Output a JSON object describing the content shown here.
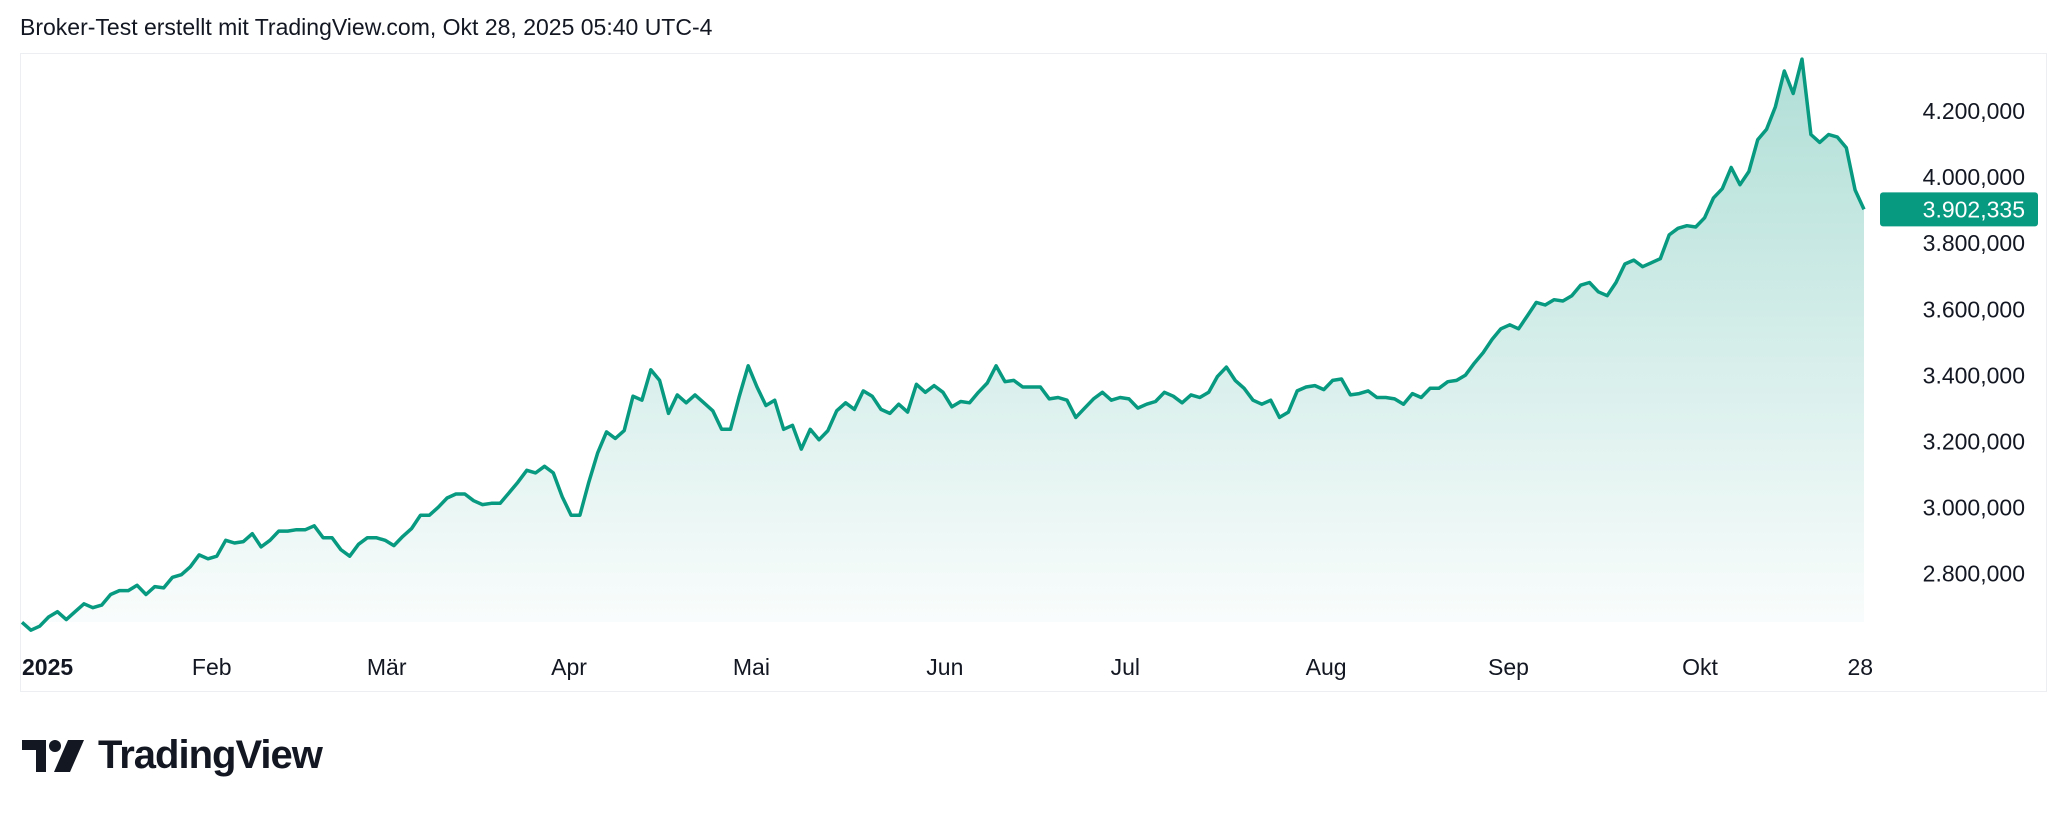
{
  "header": {
    "title": "Broker-Test erstellt mit TradingView.com, Okt 28, 2025 05:40 UTC-4"
  },
  "brand": {
    "name": "TradingView"
  },
  "colors": {
    "line": "#089981",
    "badge": "#089981",
    "text": "#131722"
  },
  "chart_data": {
    "type": "area",
    "title": "",
    "xlabel": "",
    "ylabel": "",
    "value_scale": 1000,
    "x_range": [
      "2025-01-02",
      "2025-10-28"
    ],
    "ylim": [
      2650000,
      4400000
    ],
    "grid": false,
    "x_ticks": [
      {
        "label": "2025",
        "bold": true,
        "pos": 0.0
      },
      {
        "label": "Feb",
        "pos": 0.103
      },
      {
        "label": "Mär",
        "pos": 0.198
      },
      {
        "label": "Apr",
        "pos": 0.297
      },
      {
        "label": "Mai",
        "pos": 0.396
      },
      {
        "label": "Jun",
        "pos": 0.501
      },
      {
        "label": "Jul",
        "pos": 0.599
      },
      {
        "label": "Aug",
        "pos": 0.708
      },
      {
        "label": "Sep",
        "pos": 0.807
      },
      {
        "label": "Okt",
        "pos": 0.911
      },
      {
        "label": "28",
        "pos": 0.998
      }
    ],
    "y_ticks": [
      {
        "label": "4.200,000",
        "value": 4200000
      },
      {
        "label": "4.000,000",
        "value": 4000000
      },
      {
        "label": "3.800,000",
        "value": 3800000
      },
      {
        "label": "3.600,000",
        "value": 3600000
      },
      {
        "label": "3.400,000",
        "value": 3400000
      },
      {
        "label": "3.200,000",
        "value": 3200000
      },
      {
        "label": "3.000,000",
        "value": 3000000
      },
      {
        "label": "2.800,000",
        "value": 2800000
      }
    ],
    "last_value": {
      "label": "3.902,335",
      "value": 3902335
    },
    "values": [
      2653,
      2629,
      2641,
      2669,
      2685,
      2661,
      2685,
      2709,
      2697,
      2705,
      2737,
      2749,
      2749,
      2765,
      2737,
      2761,
      2757,
      2789,
      2797,
      2821,
      2857,
      2845,
      2853,
      2901,
      2893,
      2897,
      2921,
      2881,
      2901,
      2929,
      2929,
      2933,
      2933,
      2945,
      2909,
      2909,
      2873,
      2853,
      2889,
      2909,
      2909,
      2901,
      2885,
      2913,
      2937,
      2977,
      2977,
      3001,
      3029,
      3041,
      3041,
      3021,
      3009,
      3013,
      3013,
      3045,
      3077,
      3113,
      3105,
      3125,
      3105,
      3033,
      2977,
      2977,
      3077,
      3165,
      3229,
      3209,
      3233,
      3337,
      3325,
      3417,
      3385,
      3285,
      3341,
      3317,
      3341,
      3317,
      3293,
      3237,
      3237,
      3337,
      3429,
      3365,
      3309,
      3325,
      3237,
      3249,
      3177,
      3237,
      3205,
      3233,
      3293,
      3317,
      3297,
      3353,
      3337,
      3297,
      3285,
      3313,
      3289,
      3373,
      3349,
      3369,
      3349,
      3305,
      3321,
      3317,
      3349,
      3377,
      3429,
      3381,
      3385,
      3365,
      3365,
      3365,
      3329,
      3333,
      3325,
      3273,
      3301,
      3329,
      3349,
      3325,
      3333,
      3329,
      3301,
      3313,
      3321,
      3349,
      3337,
      3317,
      3341,
      3333,
      3349,
      3397,
      3425,
      3385,
      3361,
      3325,
      3313,
      3325,
      3273,
      3289,
      3353,
      3365,
      3369,
      3357,
      3385,
      3389,
      3341,
      3345,
      3353,
      3333,
      3333,
      3329,
      3313,
      3345,
      3333,
      3361,
      3361,
      3381,
      3385,
      3401,
      3437,
      3469,
      3509,
      3541,
      3553,
      3541,
      3581,
      3621,
      3613,
      3629,
      3625,
      3641,
      3673,
      3681,
      3653,
      3641,
      3681,
      3737,
      3749,
      3729,
      3741,
      3753,
      3825,
      3845,
      3853,
      3849,
      3877,
      3937,
      3965,
      4029,
      3977,
      4017,
      4113,
      4145,
      4213,
      4321,
      4253,
      4357,
      4129,
      4105,
      4129,
      4121,
      4089,
      3961,
      3902.335
    ]
  }
}
